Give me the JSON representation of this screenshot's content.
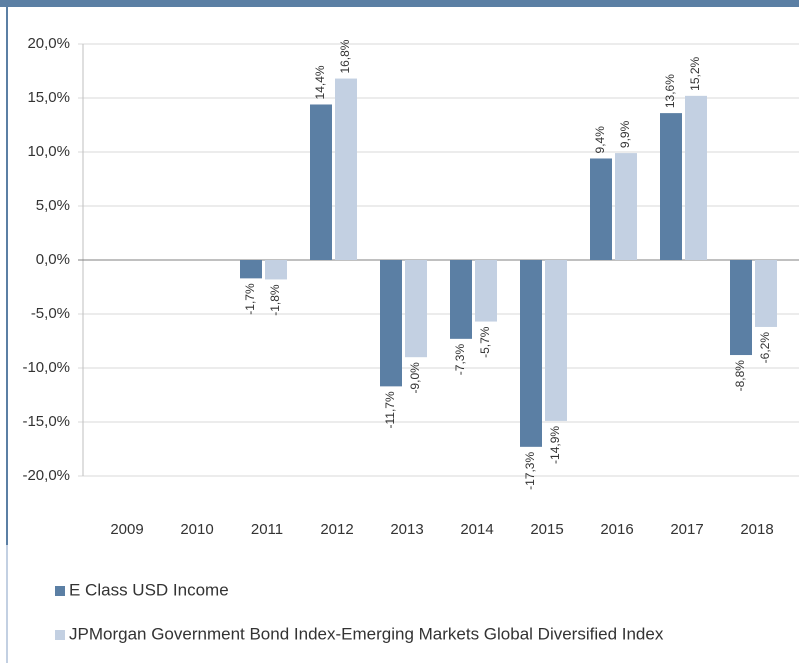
{
  "chart_data": {
    "type": "bar",
    "categories": [
      "2009",
      "2010",
      "2011",
      "2012",
      "2013",
      "2014",
      "2015",
      "2016",
      "2017",
      "2018"
    ],
    "series": [
      {
        "name": "E Class USD Income",
        "color": "#5b7fa4",
        "values": [
          null,
          null,
          -1.7,
          14.4,
          -11.7,
          -7.3,
          -17.3,
          9.4,
          13.6,
          -8.8
        ],
        "value_labels": [
          null,
          null,
          "-1,7%",
          "14,4%",
          "-11,7%",
          "-7,3%",
          "-17,3%",
          "9,4%",
          "13,6%",
          "-8,8%"
        ]
      },
      {
        "name": "JPMorgan Government Bond Index-Emerging Markets Global Diversified Index",
        "color": "#c3d0e2",
        "values": [
          null,
          null,
          -1.8,
          16.8,
          -9.0,
          -5.7,
          -14.9,
          9.9,
          15.2,
          -6.2
        ],
        "value_labels": [
          null,
          null,
          "-1,8%",
          "16,8%",
          "-9,0%",
          "-5,7%",
          "-14,9%",
          "9,9%",
          "15,2%",
          "-6,2%"
        ]
      }
    ],
    "ylim": [
      -20,
      20
    ],
    "yticks": [
      {
        "value": 20,
        "label": "20,0%"
      },
      {
        "value": 15,
        "label": "15,0%"
      },
      {
        "value": 10,
        "label": "10,0%"
      },
      {
        "value": 5,
        "label": "5,0%"
      },
      {
        "value": 0,
        "label": "0,0%"
      },
      {
        "value": -5,
        "label": "-5,0%"
      },
      {
        "value": -10,
        "label": "-10,0%"
      },
      {
        "value": -15,
        "label": "-15,0%"
      },
      {
        "value": -20,
        "label": "-20,0%"
      }
    ],
    "grid": true
  }
}
